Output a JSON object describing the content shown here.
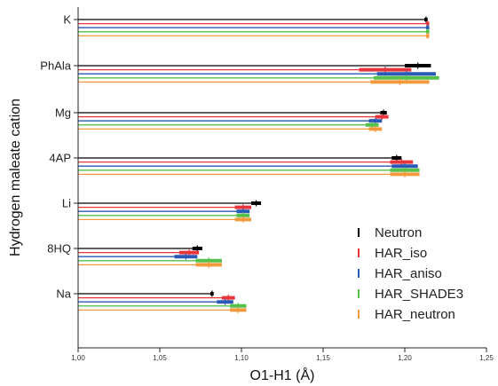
{
  "chart_data": {
    "type": "bar",
    "title": "",
    "xlabel": "O1-H1 (Å)",
    "ylabel": "Hydrogen maleate cation",
    "xlim": [
      1.0,
      1.25
    ],
    "x_ticks": [
      "1,00",
      "1,05",
      "1,10",
      "1,15",
      "1,20",
      "1,25"
    ],
    "categories": [
      "K",
      "PhAla",
      "Mg",
      "4AP",
      "Li",
      "8HQ",
      "Na"
    ],
    "series": [
      {
        "name": "Neutron",
        "color": "#000000",
        "values": [
          1.213,
          1.208,
          1.187,
          1.195,
          1.109,
          1.073,
          1.082
        ],
        "errors": [
          0.001,
          0.008,
          0.002,
          0.003,
          0.003,
          0.003,
          0.001
        ]
      },
      {
        "name": "HAR_iso",
        "color": "#e8353b",
        "values": [
          1.214,
          1.188,
          1.186,
          1.198,
          1.101,
          1.068,
          1.092
        ],
        "errors": [
          0.001,
          0.016,
          0.004,
          0.007,
          0.005,
          0.006,
          0.004
        ]
      },
      {
        "name": "HAR_aniso",
        "color": "#2a58b5",
        "values": [
          1.214,
          1.201,
          1.182,
          1.2,
          1.101,
          1.066,
          1.09
        ],
        "errors": [
          0.001,
          0.018,
          0.004,
          0.008,
          0.004,
          0.007,
          0.005
        ]
      },
      {
        "name": "HAR_SHADE3",
        "color": "#55c04a",
        "values": [
          1.214,
          1.201,
          1.18,
          1.2,
          1.101,
          1.08,
          1.098
        ],
        "errors": [
          0.001,
          0.02,
          0.004,
          0.009,
          0.004,
          0.008,
          0.005
        ]
      },
      {
        "name": "HAR_neutron",
        "color": "#f29a3b",
        "values": [
          1.214,
          1.197,
          1.182,
          1.2,
          1.101,
          1.08,
          1.098
        ],
        "errors": [
          0.001,
          0.018,
          0.004,
          0.009,
          0.005,
          0.008,
          0.005
        ]
      }
    ],
    "legend_position": "bottom-right",
    "grid": false
  }
}
